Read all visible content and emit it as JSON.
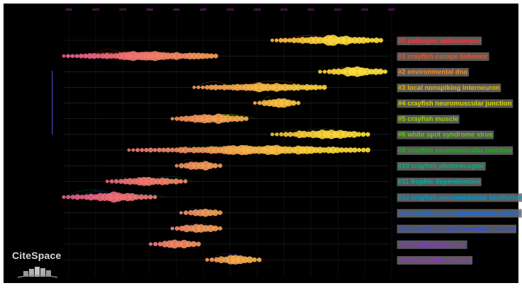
{
  "logo": {
    "text": "CiteSpace"
  },
  "colors": {
    "background": "#000000",
    "year_tick": "#cc33cc",
    "lane_line": "#2a2a3a"
  },
  "chart_data": {
    "type": "timeline",
    "x_ticks": [
      "1952",
      "1973",
      "1978",
      "1985",
      "1991",
      "1997",
      "2003",
      "2009",
      "2015",
      "2021",
      "2024",
      "2025",
      "2027"
    ],
    "clusters": [
      {
        "id": "#0",
        "label": "#0 pathogen aphanomyce",
        "color": "#ff3333",
        "start": 2000,
        "end": 2025
      },
      {
        "id": "#1",
        "label": "#1 crayfish escape behavior",
        "color": "#ff4d1a",
        "start": 1952,
        "end": 1987
      },
      {
        "id": "#2",
        "label": "#2 environmental dna",
        "color": "#ff8c1a",
        "start": 2011,
        "end": 2026
      },
      {
        "id": "#3",
        "label": "#3 local nonspiking interneuron",
        "color": "#e6b800",
        "start": 1982,
        "end": 2012
      },
      {
        "id": "#4",
        "label": "#4 crayfish neuromuscular junction",
        "color": "#d4d400",
        "start": 1996,
        "end": 2006
      },
      {
        "id": "#5",
        "label": "#5 crayfish muscle",
        "color": "#8fd400",
        "start": 1977,
        "end": 1994
      },
      {
        "id": "#6",
        "label": "#6 white spot syndrome virus",
        "color": "#5ad400",
        "start": 2000,
        "end": 2022
      },
      {
        "id": "#8",
        "label": "#8 crayfish neuromuscular junction",
        "color": "#1ab31a",
        "start": 1967,
        "end": 2022
      },
      {
        "id": "#10",
        "label": "#10 crayfish photoreceptor",
        "color": "#00b380",
        "start": 1978,
        "end": 1988
      },
      {
        "id": "#11",
        "label": "#11 trophic dependencies",
        "color": "#00b3a0",
        "start": 1962,
        "end": 1980
      },
      {
        "id": "#12",
        "label": "#12 crayfish neuromuscular facilitation",
        "color": "#0099cc",
        "start": 1952,
        "end": 1973
      },
      {
        "id": "#13",
        "label": "#13 crayfish austropotamobius pallipe",
        "color": "#1a6fe6",
        "start": 1979,
        "end": 1988
      },
      {
        "id": "#14",
        "label": "#14 crayfish stretch-receptor neuron",
        "color": "#2b4de6",
        "start": 1977,
        "end": 1988
      },
      {
        "id": "#17",
        "label": "#17 molting hormone",
        "color": "#8a2be6",
        "start": 1972,
        "end": 1983
      },
      {
        "id": "#18",
        "label": "#18 transmitter release",
        "color": "#9933cc",
        "start": 1985,
        "end": 1997
      }
    ]
  }
}
